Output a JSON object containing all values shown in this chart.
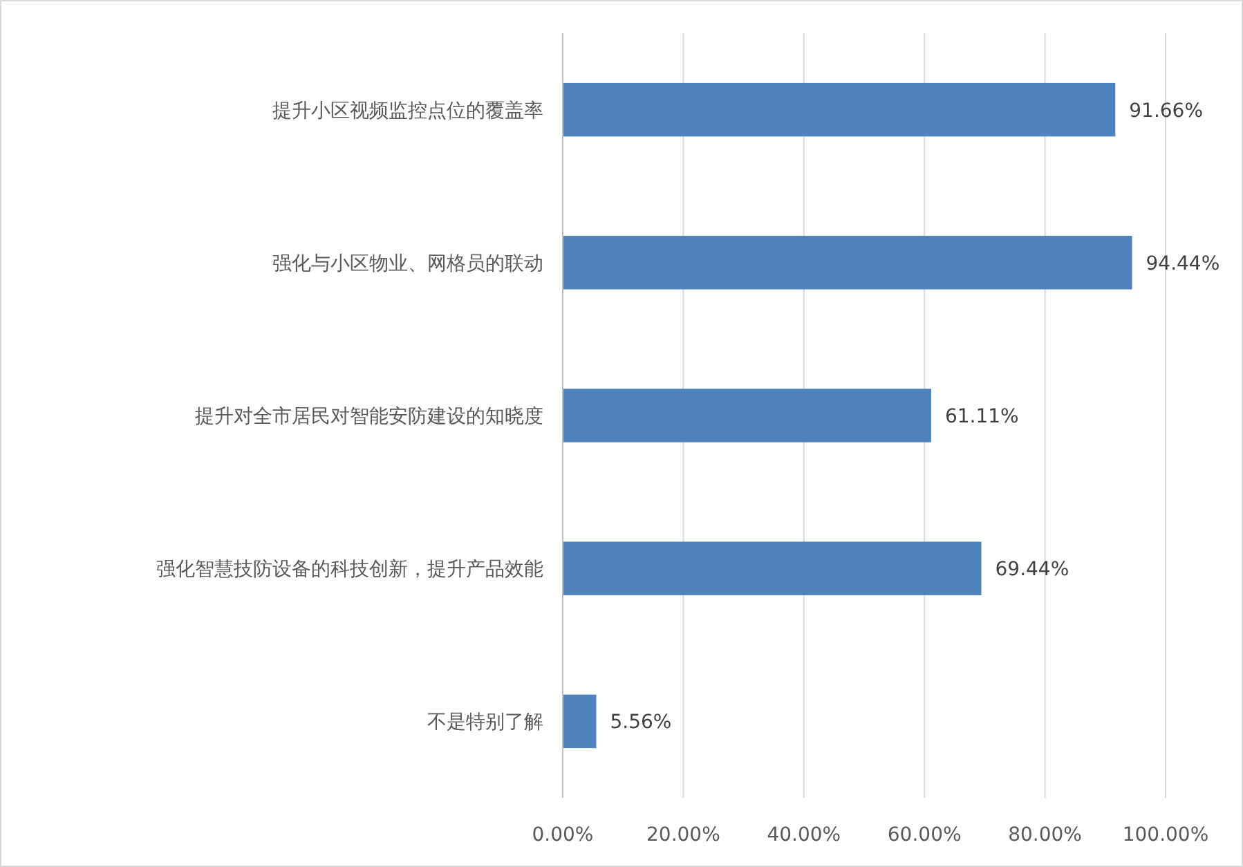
{
  "chart_data": {
    "type": "bar",
    "orientation": "horizontal",
    "categories": [
      "提升小区视频监控点位的覆盖率",
      "强化与小区物业、网格员的联动",
      "提升对全市居民对智能安防建设的知晓度",
      "强化智慧技防设备的科技创新，提升产品效能",
      "不是特别了解"
    ],
    "values": [
      91.66,
      94.44,
      61.11,
      69.44,
      5.56
    ],
    "value_labels": [
      "91.66%",
      "94.44%",
      "61.11%",
      "69.44%",
      "5.56%"
    ],
    "color": "#4f81bd",
    "xlim": [
      0,
      100
    ],
    "xticks": [
      {
        "value": 0,
        "label": "0.00%"
      },
      {
        "value": 20,
        "label": "20.00%"
      },
      {
        "value": 40,
        "label": "40.00%"
      },
      {
        "value": 60,
        "label": "60.00%"
      },
      {
        "value": 80,
        "label": "80.00%"
      },
      {
        "value": 100,
        "label": "100.00%"
      }
    ],
    "grid": "x"
  }
}
